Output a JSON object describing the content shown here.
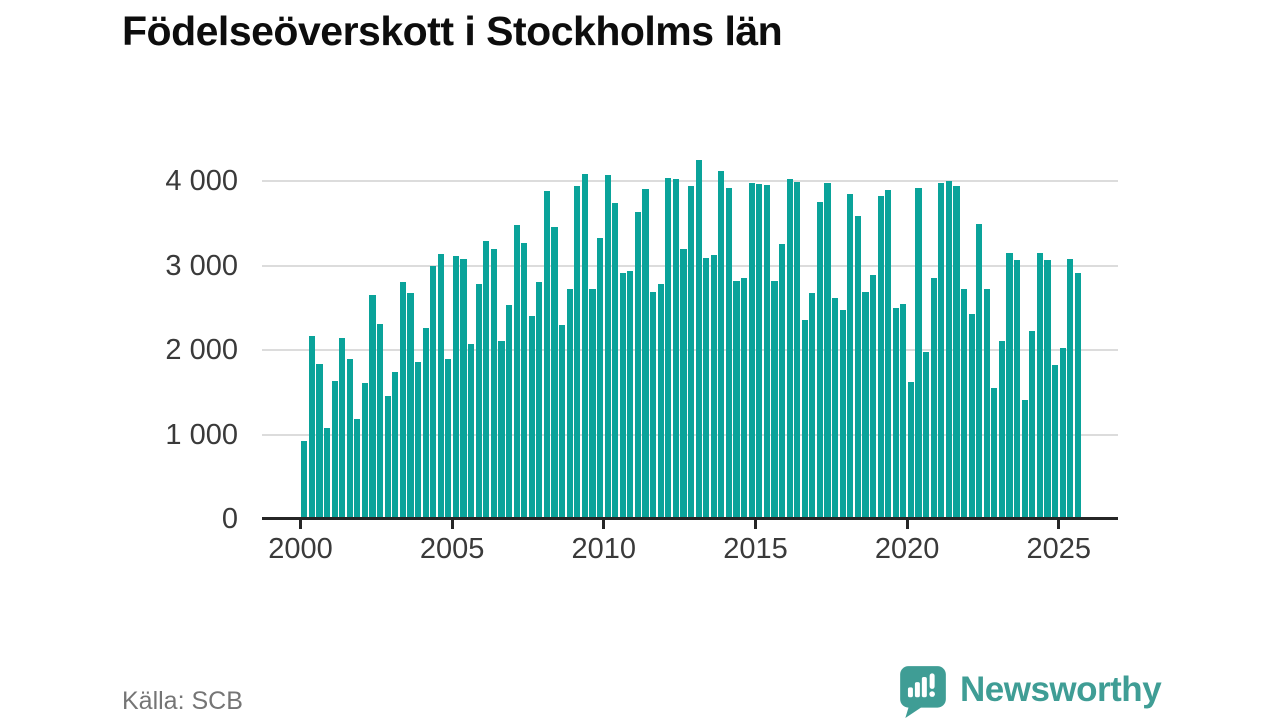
{
  "title": "Födelseöverskott i Stockholms län",
  "source": "Källa: SCB",
  "brand": {
    "name": "Newsworthy",
    "color": "#3f9d95",
    "icon": "speech-bubble-with-bar-chart-and-exclamation"
  },
  "colors": {
    "bar": "#0aa39a",
    "grid": "#dcdcdc",
    "axis": "#262626",
    "tick_label": "#3a3a3a",
    "title": "#0d0d0d",
    "source_text": "#757575"
  },
  "chart_data": {
    "type": "bar",
    "title": "Födelseöverskott i Stockholms län",
    "x_start": "2000-Q1",
    "frequency": "quarterly",
    "values": [
      930,
      2165,
      1835,
      1080,
      1640,
      2140,
      1890,
      1180,
      1615,
      2650,
      2310,
      1455,
      1745,
      2810,
      2680,
      1860,
      2265,
      3000,
      3140,
      1900,
      3120,
      3075,
      2070,
      2790,
      3290,
      3195,
      2110,
      2535,
      3485,
      3265,
      2410,
      2810,
      3885,
      3460,
      2295,
      2720,
      3950,
      4085,
      2720,
      3325,
      4070,
      3750,
      2910,
      2935,
      3635,
      3905,
      2690,
      2780,
      4045,
      4030,
      3195,
      3945,
      4250,
      3095,
      3125,
      4125,
      3925,
      2820,
      2860,
      3985,
      3965,
      3955,
      2825,
      3255,
      4030,
      3995,
      2355,
      2680,
      3755,
      3980,
      2620,
      2475,
      3845,
      3590,
      2690,
      2895,
      3825,
      3895,
      2495,
      2550,
      1620,
      3925,
      1975,
      2850,
      3985,
      4000,
      3950,
      2720,
      2430,
      3490,
      2725,
      1555,
      2105,
      3155,
      3065,
      1415,
      2225,
      3155,
      3065,
      1820,
      2030,
      3085,
      2910
    ],
    "y_ticks": [
      {
        "value": 0,
        "label": "0"
      },
      {
        "value": 1000,
        "label": "1 000"
      },
      {
        "value": 2000,
        "label": "2 000"
      },
      {
        "value": 3000,
        "label": "3 000"
      },
      {
        "value": 4000,
        "label": "4 000"
      }
    ],
    "x_ticks": [
      {
        "year": 2000,
        "label": "2000"
      },
      {
        "year": 2005,
        "label": "2005"
      },
      {
        "year": 2010,
        "label": "2010"
      },
      {
        "year": 2015,
        "label": "2015"
      },
      {
        "year": 2020,
        "label": "2020"
      },
      {
        "year": 2025,
        "label": "2025"
      }
    ],
    "ylim": [
      0,
      4380
    ],
    "grid": "horizontal",
    "legend": null
  }
}
